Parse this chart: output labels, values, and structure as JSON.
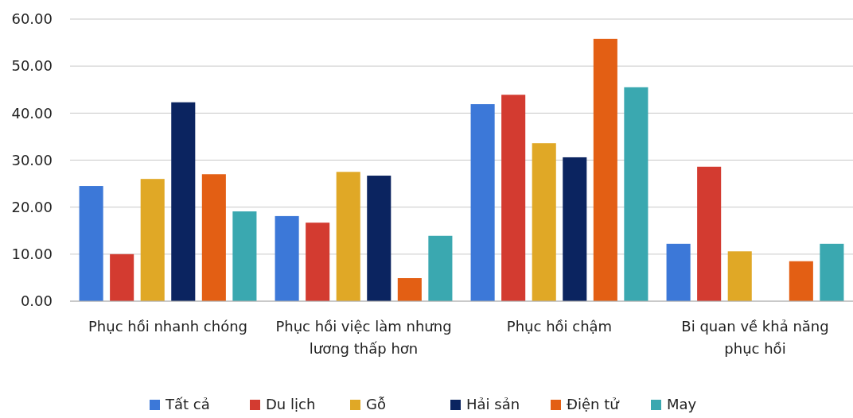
{
  "chart_data": {
    "type": "bar",
    "categories": [
      "Phục hồi nhanh chóng",
      "Phục hồi việc làm nhưng lương thấp hơn",
      "Phục hồi chậm",
      "Bi quan về khả năng phục hồi"
    ],
    "series": [
      {
        "name": "Tất cả",
        "color": "#3c78d8",
        "values": [
          24.5,
          18.1,
          41.9,
          12.2
        ]
      },
      {
        "name": "Du lịch",
        "color": "#d33b30",
        "values": [
          10.0,
          16.7,
          43.9,
          28.6
        ]
      },
      {
        "name": "Gỗ",
        "color": "#e0a826",
        "values": [
          26.0,
          27.5,
          33.6,
          10.6
        ]
      },
      {
        "name": "Hải sản",
        "color": "#0b2460",
        "values": [
          42.3,
          26.7,
          30.6,
          null
        ]
      },
      {
        "name": "Điện tử",
        "color": "#e35f14",
        "values": [
          27.0,
          4.9,
          55.8,
          8.5
        ]
      },
      {
        "name": "May",
        "color": "#3aa8b0",
        "values": [
          19.1,
          13.9,
          45.5,
          12.2
        ]
      }
    ],
    "ylim": [
      0,
      60
    ],
    "yticks": [
      {
        "value": 0,
        "label": "0.00"
      },
      {
        "value": 10,
        "label": "10.00"
      },
      {
        "value": 20,
        "label": "20.00"
      },
      {
        "value": 30,
        "label": "30.00"
      },
      {
        "value": 40,
        "label": "40.00"
      },
      {
        "value": 50,
        "label": "50.00"
      },
      {
        "value": 60,
        "label": "60.00"
      }
    ],
    "grid": "y",
    "legend": "bottom"
  }
}
